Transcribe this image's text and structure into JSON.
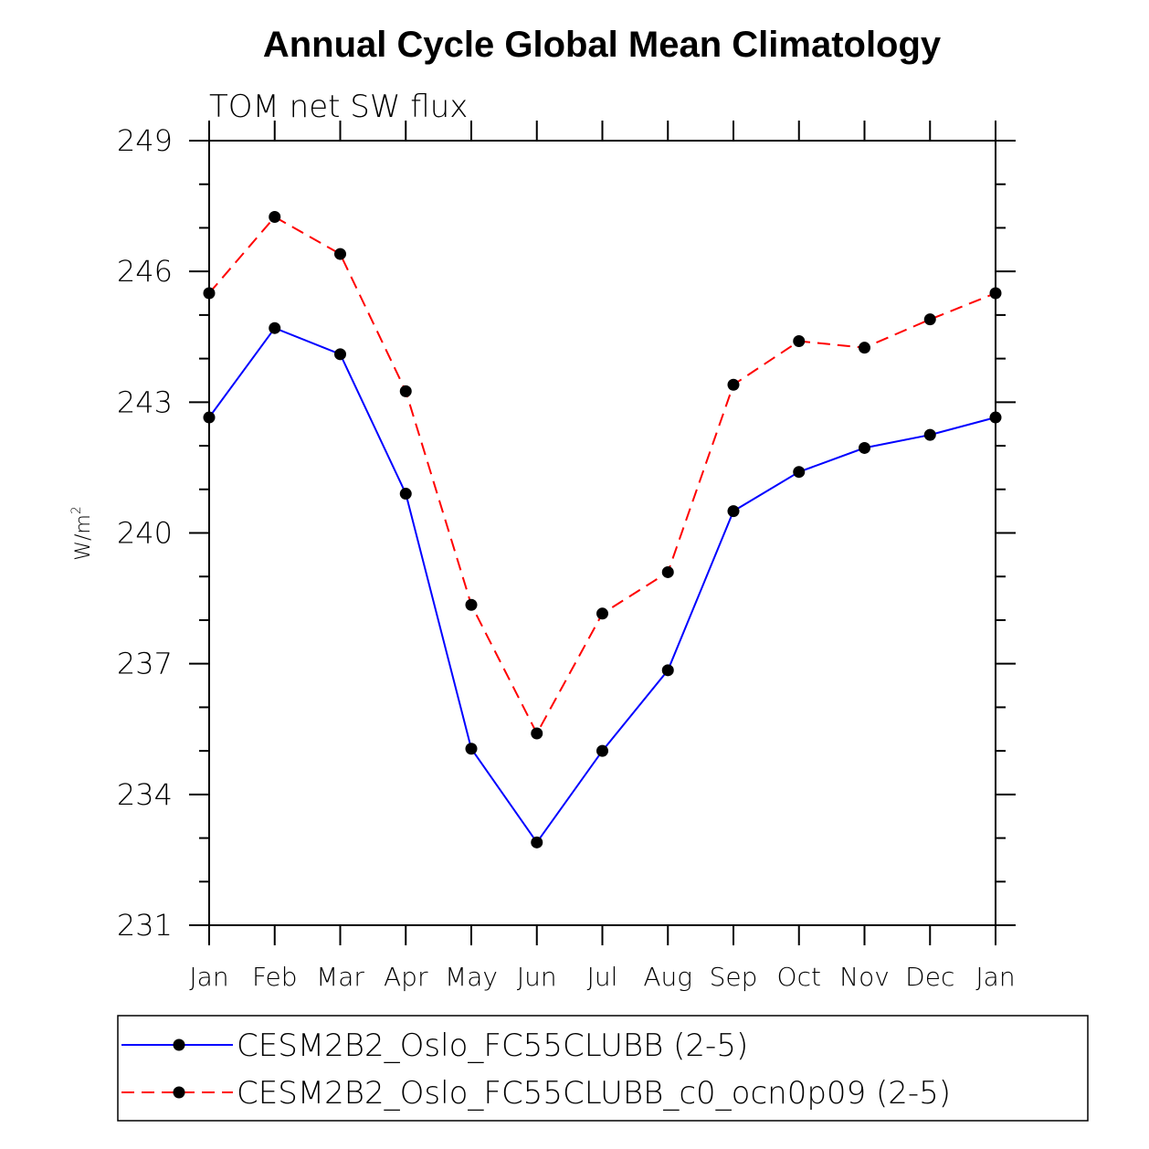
{
  "chart_data": {
    "type": "line",
    "title": "Annual Cycle Global Mean Climatology",
    "subtitle": "TOM net SW flux",
    "ylabel": "W/m",
    "ylabel_sup": "2",
    "ylim": [
      231,
      249
    ],
    "yticks": [
      231,
      234,
      237,
      240,
      243,
      246,
      249
    ],
    "categories": [
      "Jan",
      "Feb",
      "Mar",
      "Apr",
      "May",
      "Jun",
      "Jul",
      "Aug",
      "Sep",
      "Oct",
      "Nov",
      "Dec",
      "Jan"
    ],
    "series": [
      {
        "name": "CESM2B2_Oslo_FC55CLUBB (2-5)",
        "color": "#0000ff",
        "dash": "solid",
        "values": [
          242.65,
          244.7,
          244.1,
          240.9,
          235.05,
          232.9,
          235.0,
          236.85,
          240.5,
          241.4,
          241.95,
          242.25,
          242.65
        ]
      },
      {
        "name": "CESM2B2_Oslo_FC55CLUBB_c0_ocn0p09 (2-5)",
        "color": "#ff0000",
        "dash": "dashed",
        "values": [
          245.5,
          247.25,
          246.4,
          243.25,
          238.35,
          235.4,
          238.15,
          239.1,
          243.4,
          244.4,
          244.25,
          244.9,
          245.5
        ]
      }
    ],
    "legend_position": "bottom"
  }
}
